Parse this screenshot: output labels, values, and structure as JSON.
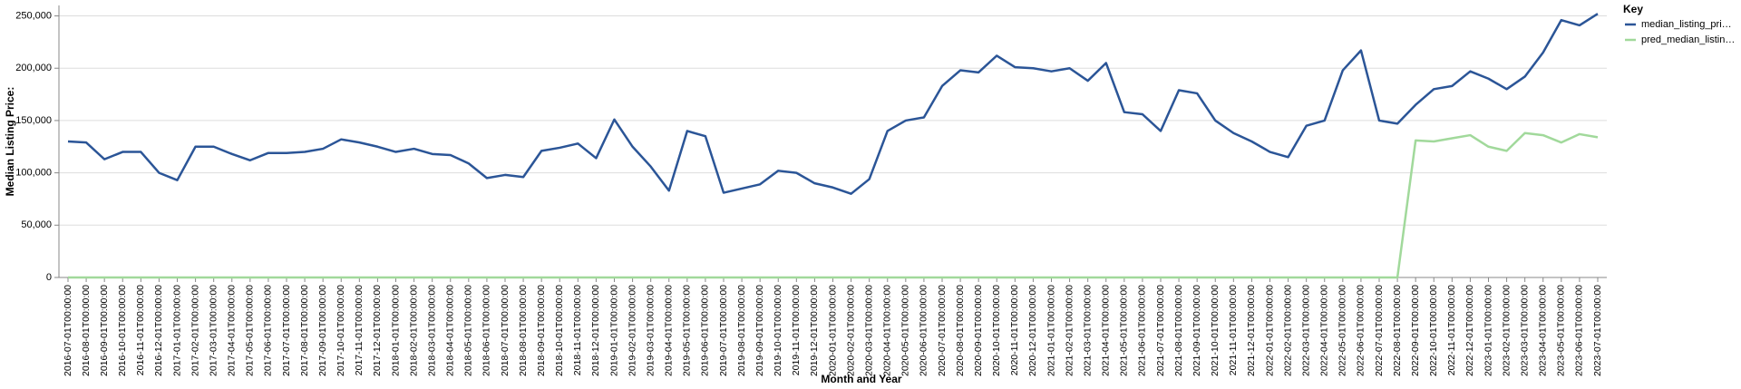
{
  "chart_data": {
    "type": "line",
    "x_label": "Month and Year",
    "y_label": "Median Listing Price:",
    "legend_title": "Key",
    "legend_position": "right",
    "grid": true,
    "categories": [
      "2016-07-01T00:00:00",
      "2016-08-01T00:00:00",
      "2016-09-01T00:00:00",
      "2016-10-01T00:00:00",
      "2016-11-01T00:00:00",
      "2016-12-01T00:00:00",
      "2017-01-01T00:00:00",
      "2017-02-01T00:00:00",
      "2017-03-01T00:00:00",
      "2017-04-01T00:00:00",
      "2017-05-01T00:00:00",
      "2017-06-01T00:00:00",
      "2017-07-01T00:00:00",
      "2017-08-01T00:00:00",
      "2017-09-01T00:00:00",
      "2017-10-01T00:00:00",
      "2017-11-01T00:00:00",
      "2017-12-01T00:00:00",
      "2018-01-01T00:00:00",
      "2018-02-01T00:00:00",
      "2018-03-01T00:00:00",
      "2018-04-01T00:00:00",
      "2018-05-01T00:00:00",
      "2018-06-01T00:00:00",
      "2018-07-01T00:00:00",
      "2018-08-01T00:00:00",
      "2018-09-01T00:00:00",
      "2018-10-01T00:00:00",
      "2018-11-01T00:00:00",
      "2018-12-01T00:00:00",
      "2019-01-01T00:00:00",
      "2019-02-01T00:00:00",
      "2019-03-01T00:00:00",
      "2019-04-01T00:00:00",
      "2019-05-01T00:00:00",
      "2019-06-01T00:00:00",
      "2019-07-01T00:00:00",
      "2019-08-01T00:00:00",
      "2019-09-01T00:00:00",
      "2019-10-01T00:00:00",
      "2019-11-01T00:00:00",
      "2019-12-01T00:00:00",
      "2020-01-01T00:00:00",
      "2020-02-01T00:00:00",
      "2020-03-01T00:00:00",
      "2020-04-01T00:00:00",
      "2020-05-01T00:00:00",
      "2020-06-01T00:00:00",
      "2020-07-01T00:00:00",
      "2020-08-01T00:00:00",
      "2020-09-01T00:00:00",
      "2020-10-01T00:00:00",
      "2020-11-01T00:00:00",
      "2020-12-01T00:00:00",
      "2021-01-01T00:00:00",
      "2021-02-01T00:00:00",
      "2021-03-01T00:00:00",
      "2021-04-01T00:00:00",
      "2021-05-01T00:00:00",
      "2021-06-01T00:00:00",
      "2021-07-01T00:00:00",
      "2021-08-01T00:00:00",
      "2021-09-01T00:00:00",
      "2021-10-01T00:00:00",
      "2021-11-01T00:00:00",
      "2021-12-01T00:00:00",
      "2022-01-01T00:00:00",
      "2022-02-01T00:00:00",
      "2022-03-01T00:00:00",
      "2022-04-01T00:00:00",
      "2022-05-01T00:00:00",
      "2022-06-01T00:00:00",
      "2022-07-01T00:00:00",
      "2022-08-01T00:00:00",
      "2022-09-01T00:00:00",
      "2022-10-01T00:00:00",
      "2022-11-01T00:00:00",
      "2022-12-01T00:00:00",
      "2023-01-01T00:00:00",
      "2023-02-01T00:00:00",
      "2023-03-01T00:00:00",
      "2023-04-01T00:00:00",
      "2023-05-01T00:00:00",
      "2023-06-01T00:00:00",
      "2023-07-01T00:00:00"
    ],
    "series": [
      {
        "name": "median_listing_pri…",
        "color": "#2b5597",
        "values": [
          130000,
          129000,
          113000,
          120000,
          120000,
          100000,
          93000,
          125000,
          125000,
          118000,
          112000,
          119000,
          119000,
          120000,
          123000,
          132000,
          129000,
          125000,
          120000,
          123000,
          118000,
          117000,
          109000,
          95000,
          98000,
          96000,
          121000,
          124000,
          128000,
          114000,
          151000,
          125000,
          106000,
          83000,
          140000,
          135000,
          81000,
          85000,
          89000,
          102000,
          100000,
          90000,
          86000,
          80000,
          94000,
          140000,
          150000,
          153000,
          183000,
          198000,
          196000,
          212000,
          201000,
          200000,
          197000,
          200000,
          188000,
          205000,
          158000,
          156000,
          140000,
          179000,
          176000,
          150000,
          138000,
          130000,
          120000,
          115000,
          145000,
          150000,
          198000,
          217000,
          150000,
          147000,
          165000,
          180000,
          183000,
          197000,
          190000,
          180000,
          192000,
          215000,
          246000,
          241000,
          252000
        ]
      },
      {
        "name": "pred_median_listin…",
        "color": "#a1d99b",
        "values": [
          0,
          0,
          0,
          0,
          0,
          0,
          0,
          0,
          0,
          0,
          0,
          0,
          0,
          0,
          0,
          0,
          0,
          0,
          0,
          0,
          0,
          0,
          0,
          0,
          0,
          0,
          0,
          0,
          0,
          0,
          0,
          0,
          0,
          0,
          0,
          0,
          0,
          0,
          0,
          0,
          0,
          0,
          0,
          0,
          0,
          0,
          0,
          0,
          0,
          0,
          0,
          0,
          0,
          0,
          0,
          0,
          0,
          0,
          0,
          0,
          0,
          0,
          0,
          0,
          0,
          0,
          0,
          0,
          0,
          0,
          0,
          0,
          0,
          0,
          131000,
          130000,
          133000,
          136000,
          125000,
          121000,
          138000,
          136000,
          129000,
          137000,
          134000
        ]
      }
    ],
    "ylim": [
      0,
      260000
    ],
    "yticks": [
      0,
      {
        "value": 50000,
        "label": "50,000"
      },
      {
        "value": 100000,
        "label": "100,000"
      },
      {
        "value": 150000,
        "label": "150,000"
      },
      {
        "value": 200000,
        "label": "200,000"
      },
      {
        "value": 250000,
        "label": "250,000"
      }
    ]
  }
}
